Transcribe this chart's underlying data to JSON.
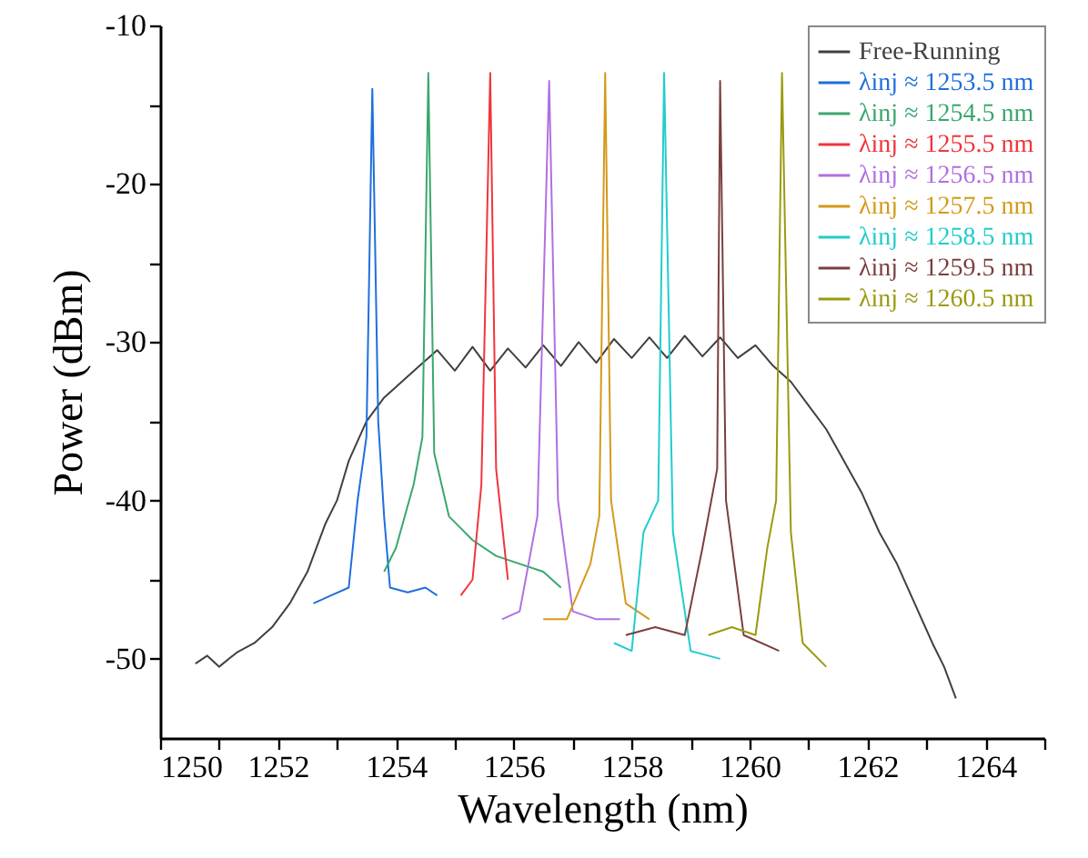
{
  "chart_data": {
    "type": "line",
    "xlabel": "Wavelength (nm)",
    "ylabel": "Power (dBm)",
    "xlim": [
      1250,
      1265
    ],
    "xticks": [
      1250,
      {
        "value": 1251,
        "label": null
      },
      1252,
      {
        "value": 1253,
        "label": null
      },
      1254,
      {
        "value": 1255,
        "label": null
      },
      1256,
      {
        "value": 1257,
        "label": null
      },
      1258,
      {
        "value": 1259,
        "label": null
      },
      1260,
      {
        "value": 1261,
        "label": null
      },
      1262,
      {
        "value": 1263,
        "label": null
      },
      1264,
      {
        "value": 1265,
        "label": null
      }
    ],
    "ylim": [
      -55,
      -10
    ],
    "yticks": [
      -50,
      {
        "value": -45,
        "label": null
      },
      -40,
      {
        "value": -35,
        "label": null
      },
      -30,
      {
        "value": -25,
        "label": null
      },
      -20,
      {
        "value": -15,
        "label": null
      },
      -10
    ],
    "grid": false,
    "legend": "top right",
    "line_style": "solid",
    "marker": "none",
    "series": [
      {
        "name": "Free-Running",
        "color": "#404040",
        "x": [
          1250.6,
          1250.8,
          1251.0,
          1251.3,
          1251.6,
          1251.9,
          1252.2,
          1252.5,
          1252.8,
          1253.0,
          1253.2,
          1253.5,
          1253.8,
          1254.1,
          1254.4,
          1254.7,
          1255.0,
          1255.3,
          1255.6,
          1255.9,
          1256.2,
          1256.5,
          1256.8,
          1257.1,
          1257.4,
          1257.7,
          1258.0,
          1258.3,
          1258.6,
          1258.9,
          1259.2,
          1259.5,
          1259.8,
          1260.1,
          1260.4,
          1260.7,
          1261.0,
          1261.3,
          1261.6,
          1261.9,
          1262.2,
          1262.5,
          1262.8,
          1263.1,
          1263.3,
          1263.5
        ],
        "values": [
          -50.3,
          -49.8,
          -50.5,
          -49.6,
          -49.0,
          -48.0,
          -46.5,
          -44.5,
          -41.5,
          -40.0,
          -37.5,
          -35.0,
          -33.5,
          -32.5,
          -31.5,
          -30.5,
          -31.8,
          -30.3,
          -31.8,
          -30.4,
          -31.6,
          -30.2,
          -31.5,
          -30.0,
          -31.3,
          -29.8,
          -31.0,
          -29.7,
          -31.0,
          -29.6,
          -30.9,
          -29.7,
          -31.0,
          -30.2,
          -31.5,
          -32.5,
          -34.0,
          -35.5,
          -37.5,
          -39.5,
          -42.0,
          -44.0,
          -46.5,
          -49.0,
          -50.5,
          -52.5
        ]
      },
      {
        "name": "λinj ≈ 1253.5 nm",
        "color": "#1f6fdc",
        "x": [
          1252.6,
          1252.9,
          1253.2,
          1253.35,
          1253.5,
          1253.6,
          1253.7,
          1253.8,
          1253.9,
          1254.2,
          1254.5,
          1254.7
        ],
        "values": [
          -46.5,
          -46,
          -45.5,
          -40,
          -36,
          -14,
          -35,
          -41,
          -45.5,
          -45.8,
          -45.5,
          -46
        ]
      },
      {
        "name": "λinj ≈ 1254.5 nm",
        "color": "#3aa76d",
        "x": [
          1253.8,
          1254.0,
          1254.3,
          1254.45,
          1254.55,
          1254.65,
          1254.9,
          1255.3,
          1255.7,
          1256.1,
          1256.5,
          1256.8
        ],
        "values": [
          -44.5,
          -43,
          -39,
          -36,
          -13,
          -37,
          -41,
          -42.5,
          -43.5,
          -44,
          -44.5,
          -45.5
        ]
      },
      {
        "name": "λinj ≈ 1255.5 nm",
        "color": "#f0353c",
        "x": [
          1255.1,
          1255.3,
          1255.45,
          1255.6,
          1255.7,
          1255.9
        ],
        "values": [
          -46,
          -45,
          -39,
          -13,
          -38,
          -45
        ]
      },
      {
        "name": "λinj ≈ 1256.5 nm",
        "color": "#b070e0",
        "x": [
          1255.8,
          1256.1,
          1256.4,
          1256.6,
          1256.75,
          1257.0,
          1257.4,
          1257.8
        ],
        "values": [
          -47.5,
          -47,
          -41,
          -13.5,
          -40,
          -47,
          -47.5,
          -47.5
        ]
      },
      {
        "name": "λinj ≈ 1257.5 nm",
        "color": "#d49a1a",
        "x": [
          1256.5,
          1256.9,
          1257.3,
          1257.45,
          1257.55,
          1257.65,
          1257.9,
          1258.3
        ],
        "values": [
          -47.5,
          -47.5,
          -44,
          -41,
          -13,
          -40,
          -46.5,
          -47.5
        ]
      },
      {
        "name": "λinj ≈ 1258.5 nm",
        "color": "#22cccc",
        "x": [
          1257.7,
          1258.0,
          1258.2,
          1258.45,
          1258.55,
          1258.7,
          1259.0,
          1259.5
        ],
        "values": [
          -49,
          -49.5,
          -42,
          -40,
          -13,
          -42,
          -49.5,
          -50
        ]
      },
      {
        "name": "λinj ≈ 1259.5 nm",
        "color": "#7b3f3f",
        "x": [
          1257.9,
          1258.4,
          1258.9,
          1259.2,
          1259.45,
          1259.5,
          1259.6,
          1259.9,
          1260.5
        ],
        "values": [
          -48.5,
          -48,
          -48.5,
          -43,
          -38,
          -13.5,
          -40,
          -48.5,
          -49.5
        ]
      },
      {
        "name": "λinj ≈ 1260.5 nm",
        "color": "#9a9a10",
        "x": [
          1259.3,
          1259.7,
          1260.1,
          1260.3,
          1260.45,
          1260.55,
          1260.7,
          1260.9,
          1261.3
        ],
        "values": [
          -48.5,
          -48,
          -48.5,
          -43,
          -40,
          -13,
          -42,
          -49,
          -50.5
        ]
      }
    ]
  }
}
